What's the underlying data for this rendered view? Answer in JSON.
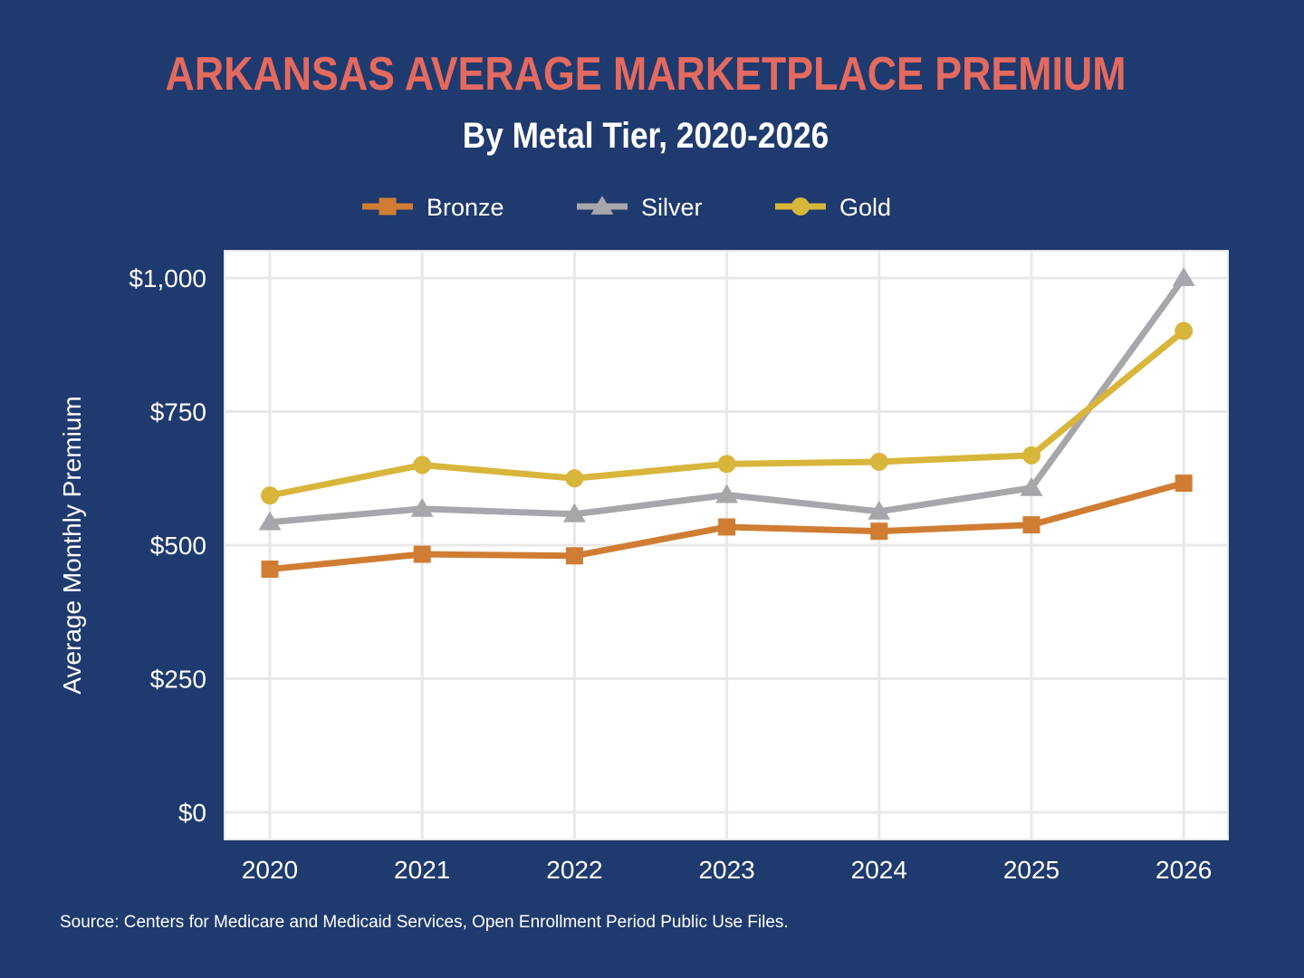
{
  "chart_data": {
    "type": "line",
    "title": "ARKANSAS AVERAGE MARKETPLACE PREMIUM",
    "subtitle": "By Metal Tier, 2020-2026",
    "ylabel": "Average Monthly Premium",
    "xlabel": "",
    "x": [
      "2020",
      "2021",
      "2022",
      "2023",
      "2024",
      "2025",
      "2026"
    ],
    "ylim": [
      0,
      1000
    ],
    "yticks": [
      0,
      250,
      500,
      750,
      1000
    ],
    "ytick_labels": [
      "$0",
      "$250",
      "$500",
      "$750",
      "$1,000"
    ],
    "grid": true,
    "legend_position": "top",
    "series": [
      {
        "name": "Bronze",
        "marker": "square",
        "color": "#d07d33",
        "values": [
          455,
          483,
          480,
          534,
          526,
          538,
          616
        ]
      },
      {
        "name": "Silver",
        "marker": "triangle",
        "color": "#a7a7ab",
        "values": [
          543,
          568,
          558,
          594,
          563,
          607,
          1000
        ]
      },
      {
        "name": "Gold",
        "marker": "circle",
        "color": "#d8b53b",
        "values": [
          593,
          650,
          625,
          652,
          656,
          668,
          901
        ]
      }
    ],
    "source": "Source: Centers for Medicare and Medicaid Services, Open Enrollment Period Public Use Files."
  },
  "colors": {
    "background": "#1f3a6e",
    "title": "#e46a5f",
    "panel": "#ffffff",
    "grid": "#e8e8e8"
  }
}
